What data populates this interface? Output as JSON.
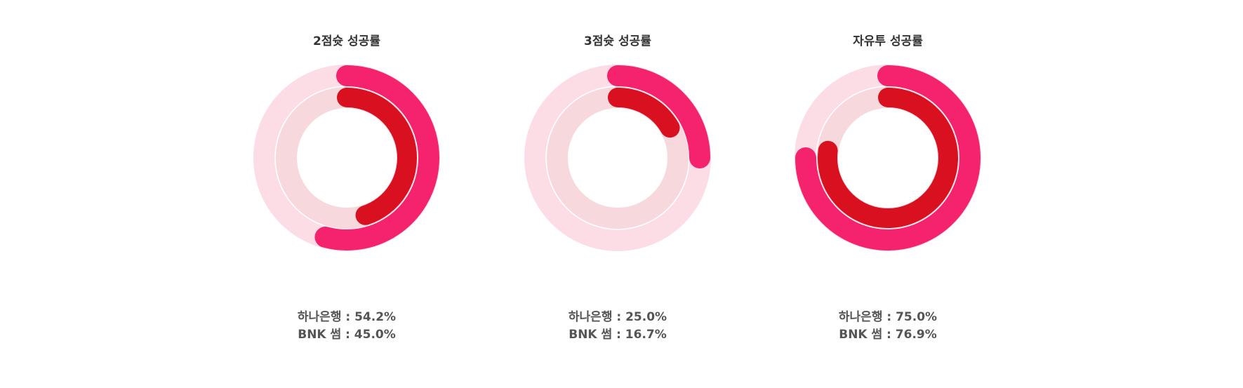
{
  "colors": {
    "outer_track": "#fcdde6",
    "inner_track": "#f7d9dd",
    "series1": "#f5236d",
    "series2": "#d8101f"
  },
  "chart_data": [
    {
      "type": "radial-bar",
      "title": "2점슛 성공률",
      "unit": "%",
      "series": [
        {
          "name": "하나은행",
          "value": 54.2
        },
        {
          "name": "BNK 썸",
          "value": 45.0
        }
      ],
      "legend_lines": [
        "하나은행 : 54.2%",
        "BNK 썸 : 45.0%"
      ]
    },
    {
      "type": "radial-bar",
      "title": "3점슛 성공률",
      "unit": "%",
      "series": [
        {
          "name": "하나은행",
          "value": 25.0
        },
        {
          "name": "BNK 썸",
          "value": 16.7
        }
      ],
      "legend_lines": [
        "하나은행 : 25.0%",
        "BNK 썸 : 16.7%"
      ]
    },
    {
      "type": "radial-bar",
      "title": "자유투 성공률",
      "unit": "%",
      "series": [
        {
          "name": "하나은행",
          "value": 75.0
        },
        {
          "name": "BNK 썸",
          "value": 76.9
        }
      ],
      "legend_lines": [
        "하나은행 : 75.0%",
        "BNK 썸 : 76.9%"
      ]
    }
  ]
}
